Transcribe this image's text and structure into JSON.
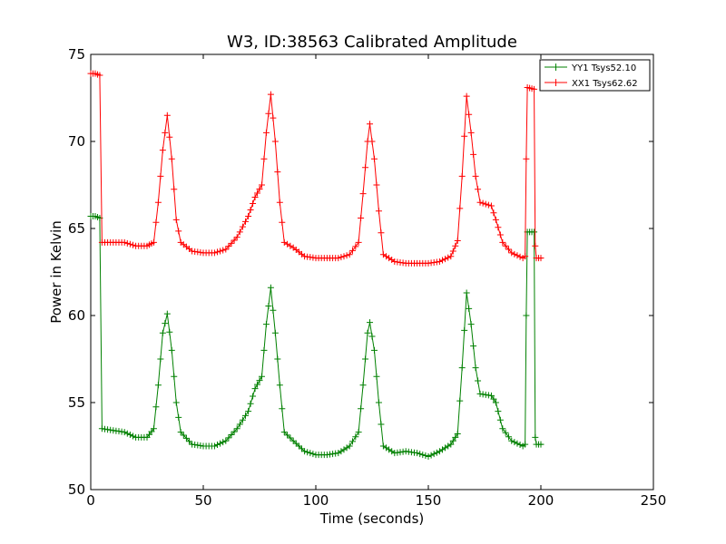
{
  "chart_data": {
    "type": "line",
    "title": "W3, ID:38563 Calibrated Amplitude",
    "xlabel": "Time (seconds)",
    "ylabel": "Power in Kelvin",
    "xlim": [
      0,
      250
    ],
    "ylim": [
      50,
      75
    ],
    "xticks": [
      0,
      50,
      100,
      150,
      200,
      250
    ],
    "yticks": [
      50,
      55,
      60,
      65,
      70,
      75
    ],
    "grid": false,
    "legend_position": "top-right",
    "series": [
      {
        "name": "YY1 Tsys52.10",
        "color": "#008000",
        "marker": "+",
        "points": [
          [
            0,
            65.7
          ],
          [
            2,
            65.7
          ],
          [
            4,
            65.6
          ],
          [
            5,
            53.5
          ],
          [
            10,
            53.4
          ],
          [
            15,
            53.3
          ],
          [
            20,
            53.0
          ],
          [
            25,
            53.0
          ],
          [
            28,
            53.5
          ],
          [
            30,
            56.0
          ],
          [
            32,
            59.0
          ],
          [
            34,
            60.1
          ],
          [
            36,
            58.0
          ],
          [
            38,
            55.0
          ],
          [
            40,
            53.3
          ],
          [
            45,
            52.6
          ],
          [
            50,
            52.5
          ],
          [
            55,
            52.5
          ],
          [
            60,
            52.8
          ],
          [
            65,
            53.5
          ],
          [
            70,
            54.5
          ],
          [
            73,
            55.8
          ],
          [
            76,
            56.5
          ],
          [
            78,
            59.5
          ],
          [
            80,
            61.6
          ],
          [
            82,
            59.0
          ],
          [
            84,
            56.0
          ],
          [
            86,
            53.3
          ],
          [
            90,
            52.8
          ],
          [
            95,
            52.2
          ],
          [
            100,
            52.0
          ],
          [
            105,
            52.0
          ],
          [
            110,
            52.1
          ],
          [
            115,
            52.5
          ],
          [
            119,
            53.3
          ],
          [
            121,
            56.0
          ],
          [
            123,
            59.0
          ],
          [
            124,
            59.6
          ],
          [
            126,
            58.0
          ],
          [
            128,
            55.0
          ],
          [
            130,
            52.5
          ],
          [
            135,
            52.1
          ],
          [
            140,
            52.2
          ],
          [
            145,
            52.1
          ],
          [
            150,
            51.9
          ],
          [
            155,
            52.2
          ],
          [
            160,
            52.6
          ],
          [
            163,
            53.2
          ],
          [
            165,
            57.0
          ],
          [
            167,
            61.3
          ],
          [
            169,
            59.5
          ],
          [
            171,
            57.0
          ],
          [
            173,
            55.5
          ],
          [
            178,
            55.4
          ],
          [
            180,
            55.0
          ],
          [
            183,
            53.5
          ],
          [
            187,
            52.8
          ],
          [
            192,
            52.5
          ],
          [
            193,
            52.6
          ],
          [
            193.5,
            60.0
          ],
          [
            194,
            64.8
          ],
          [
            197,
            64.8
          ],
          [
            197.5,
            53.0
          ],
          [
            198,
            52.6
          ],
          [
            200,
            52.6
          ],
          [
            201,
            52.6
          ]
        ]
      },
      {
        "name": "XX1 Tsys62.62",
        "color": "#ff0000",
        "marker": "+",
        "points": [
          [
            0,
            73.9
          ],
          [
            2,
            73.9
          ],
          [
            4,
            73.8
          ],
          [
            5,
            64.2
          ],
          [
            10,
            64.2
          ],
          [
            15,
            64.2
          ],
          [
            20,
            64.0
          ],
          [
            25,
            64.0
          ],
          [
            28,
            64.2
          ],
          [
            30,
            66.5
          ],
          [
            32,
            69.5
          ],
          [
            34,
            71.5
          ],
          [
            36,
            69.0
          ],
          [
            38,
            65.5
          ],
          [
            40,
            64.2
          ],
          [
            45,
            63.7
          ],
          [
            50,
            63.6
          ],
          [
            55,
            63.6
          ],
          [
            60,
            63.8
          ],
          [
            65,
            64.5
          ],
          [
            70,
            65.7
          ],
          [
            73,
            66.8
          ],
          [
            76,
            67.5
          ],
          [
            78,
            70.5
          ],
          [
            80,
            72.7
          ],
          [
            82,
            70.0
          ],
          [
            84,
            66.5
          ],
          [
            86,
            64.2
          ],
          [
            90,
            63.9
          ],
          [
            95,
            63.4
          ],
          [
            100,
            63.3
          ],
          [
            105,
            63.3
          ],
          [
            110,
            63.3
          ],
          [
            115,
            63.5
          ],
          [
            119,
            64.2
          ],
          [
            121,
            67.0
          ],
          [
            123,
            70.0
          ],
          [
            124,
            71.0
          ],
          [
            126,
            69.0
          ],
          [
            128,
            66.0
          ],
          [
            130,
            63.5
          ],
          [
            135,
            63.1
          ],
          [
            140,
            63.0
          ],
          [
            145,
            63.0
          ],
          [
            150,
            63.0
          ],
          [
            155,
            63.1
          ],
          [
            160,
            63.4
          ],
          [
            163,
            64.3
          ],
          [
            165,
            68.0
          ],
          [
            167,
            72.6
          ],
          [
            169,
            70.5
          ],
          [
            171,
            68.0
          ],
          [
            173,
            66.5
          ],
          [
            178,
            66.3
          ],
          [
            180,
            65.5
          ],
          [
            183,
            64.2
          ],
          [
            187,
            63.6
          ],
          [
            192,
            63.3
          ],
          [
            193,
            63.4
          ],
          [
            193.5,
            69.0
          ],
          [
            194,
            73.1
          ],
          [
            197,
            73.0
          ],
          [
            197.5,
            64.0
          ],
          [
            198,
            63.3
          ],
          [
            200,
            63.3
          ],
          [
            201,
            63.3
          ]
        ]
      }
    ]
  }
}
